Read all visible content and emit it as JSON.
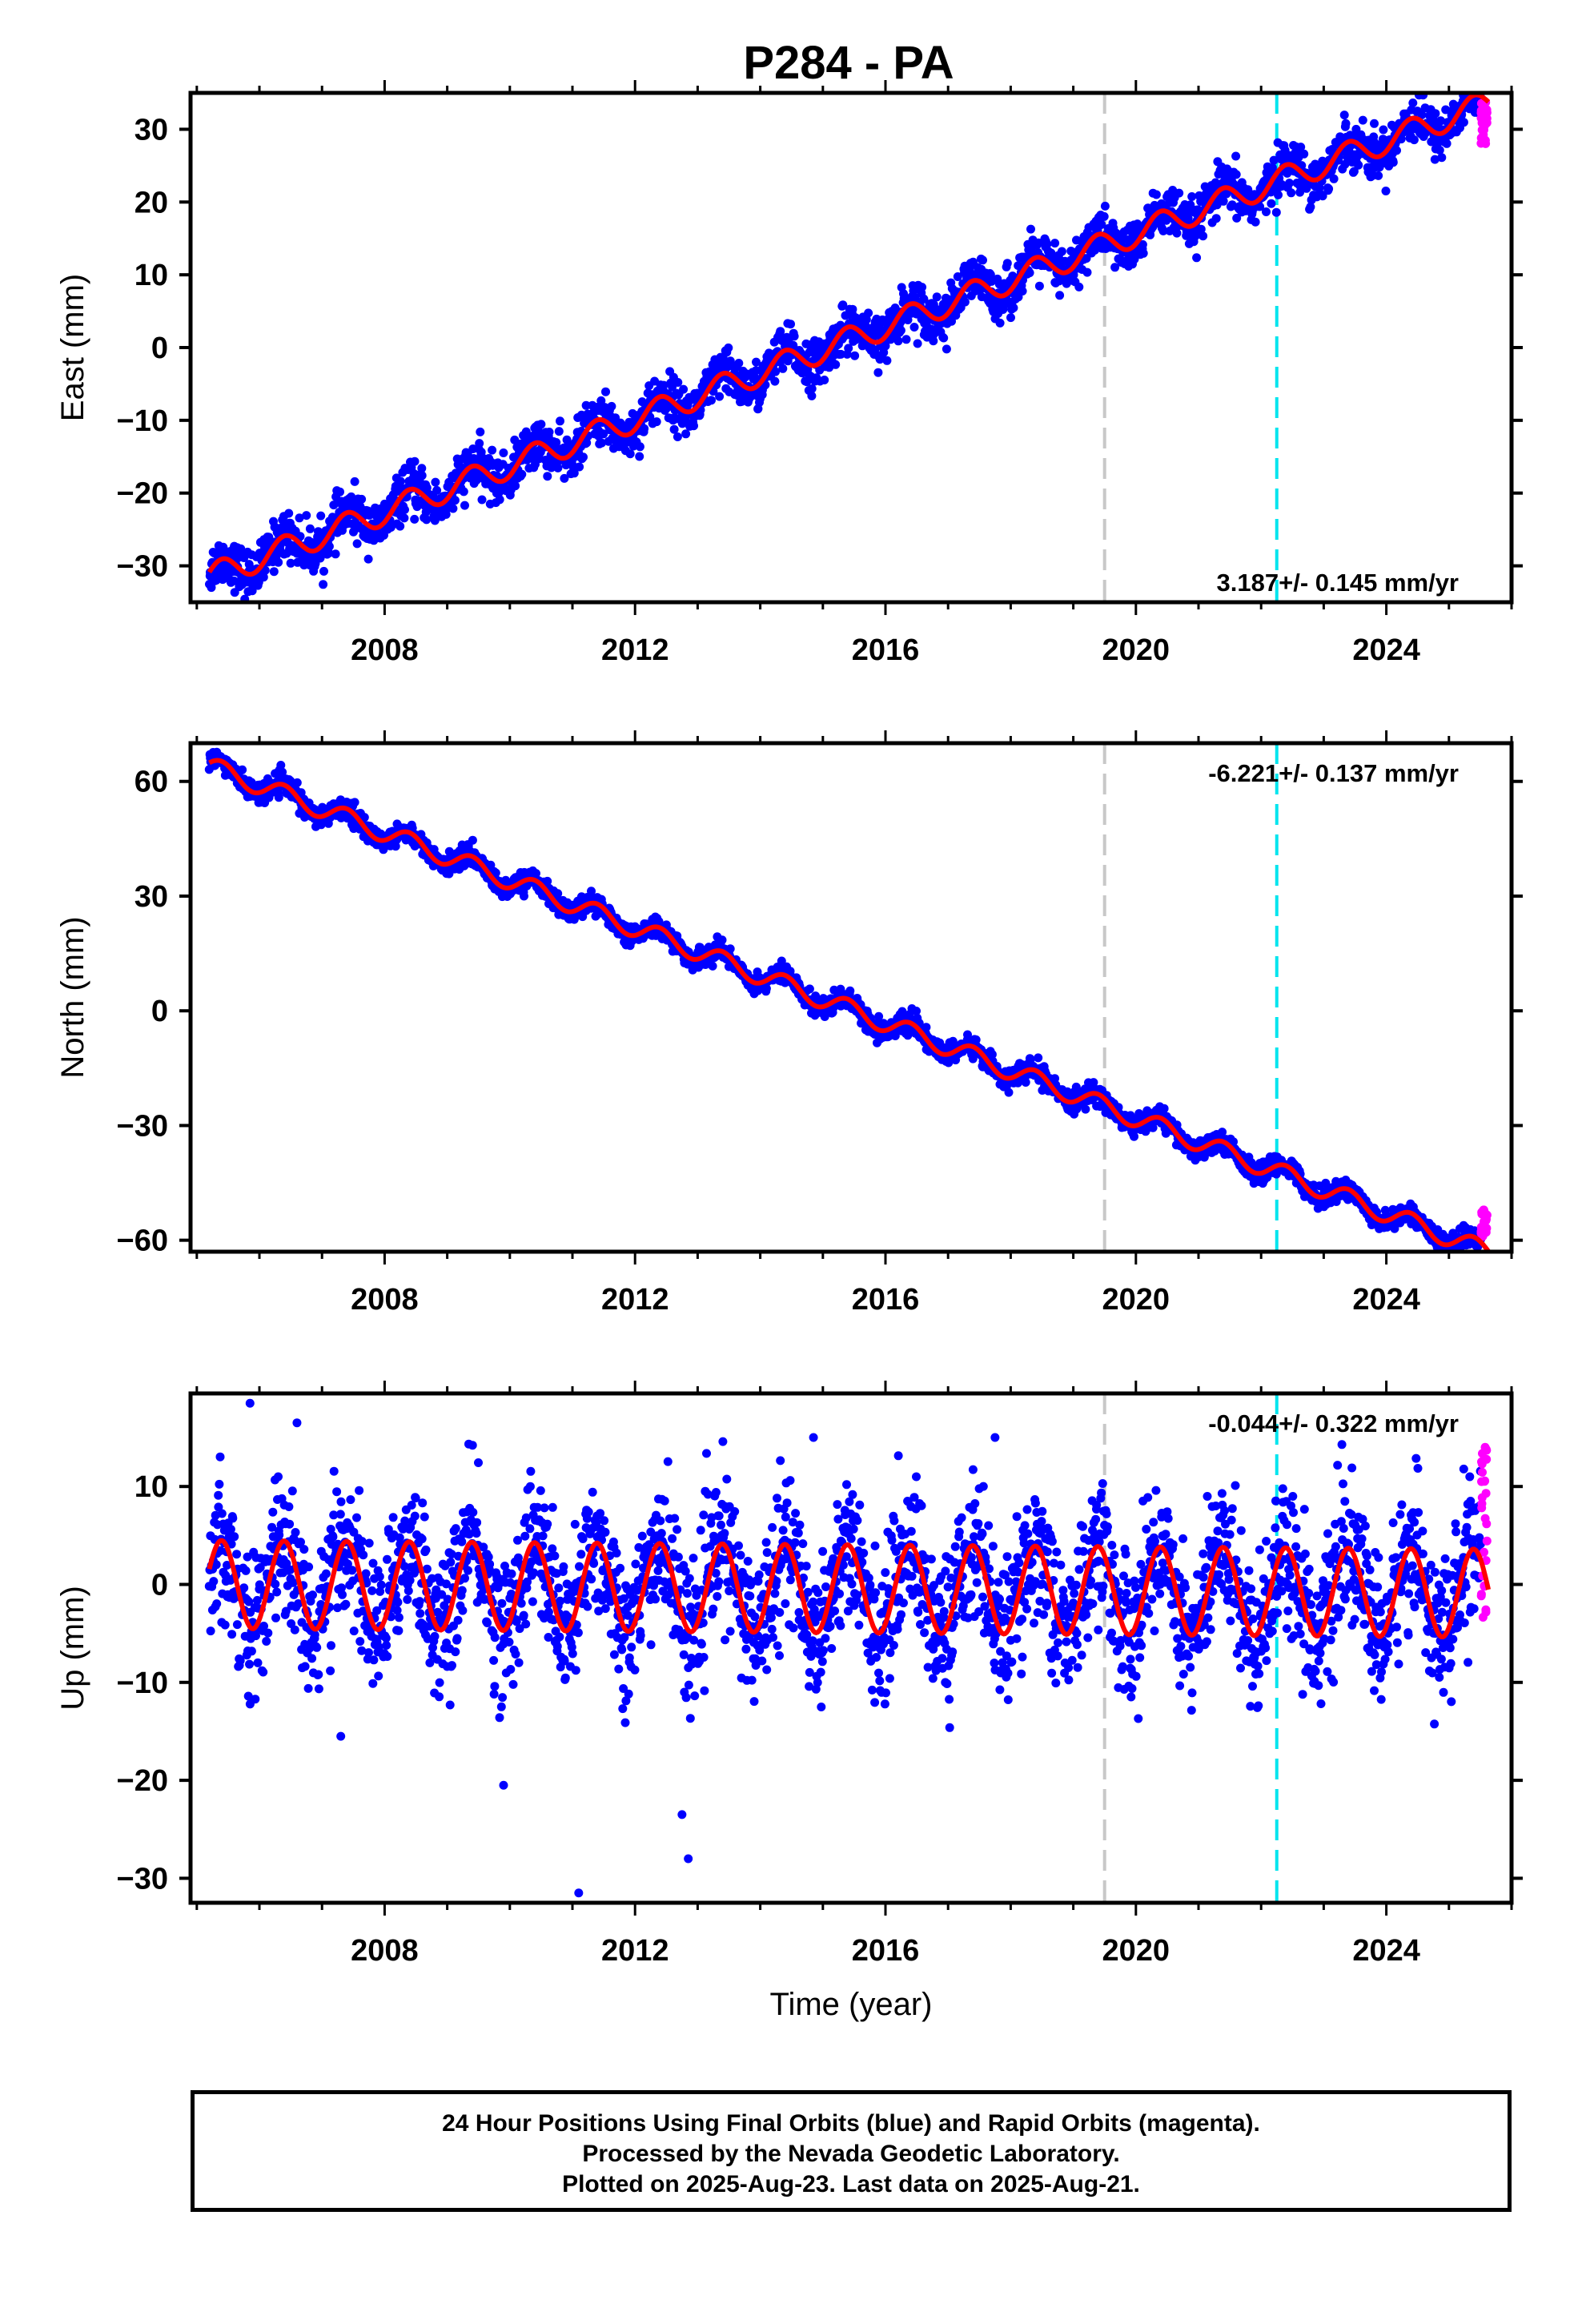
{
  "title": "P284 - PA",
  "footer": {
    "line1": "24 Hour Positions Using Final Orbits (blue) and Rapid Orbits (magenta).",
    "line2": "Processed by the Nevada Geodetic Laboratory.",
    "line3": "Plotted on 2025-Aug-23. Last data on 2025-Aug-21."
  },
  "colors": {
    "final_orbits": "#0000ff",
    "rapid_orbits": "#ff00ff",
    "model": "#ff0000",
    "event_gray": "#c8c8c8",
    "event_cyan": "#00e5ee"
  },
  "chart_data": [
    {
      "type": "scatter",
      "component": "East",
      "ylabel": "East (mm)",
      "xlabel": "",
      "rate_label": "3.187+/- 0.145 mm/yr",
      "rate_position": "bottom-right",
      "xlim": [
        2004.9,
        2026.0
      ],
      "ylim": [
        -35,
        35
      ],
      "x_ticks": [
        2008,
        2012,
        2016,
        2020,
        2024
      ],
      "x_tick_labels": [
        "2008",
        "2012",
        "2016",
        "2020",
        "2024"
      ],
      "y_ticks": [
        -30,
        -20,
        -10,
        0,
        10,
        20,
        30
      ],
      "y_tick_labels": [
        "−30",
        "−20",
        "−10",
        "0",
        "10",
        "20",
        "30"
      ],
      "start": 2005.2,
      "end": 2025.63,
      "offset_at_start": -31.5,
      "rate_mm_yr": 3.187,
      "seasonal_amplitude": 1.8,
      "scatter_spread": 1.6,
      "rapid_range": [
        28,
        34
      ],
      "event_lines": [
        {
          "x": 2019.5,
          "color": "gray"
        },
        {
          "x": 2022.25,
          "color": "cyan"
        }
      ]
    },
    {
      "type": "scatter",
      "component": "North",
      "ylabel": "North (mm)",
      "xlabel": "",
      "rate_label": "-6.221+/- 0.137 mm/yr",
      "rate_position": "top-right",
      "xlim": [
        2004.9,
        2026.0
      ],
      "ylim": [
        -63,
        70
      ],
      "x_ticks": [
        2008,
        2012,
        2016,
        2020,
        2024
      ],
      "x_tick_labels": [
        "2008",
        "2012",
        "2016",
        "2020",
        "2024"
      ],
      "y_ticks": [
        -60,
        -30,
        0,
        30,
        60
      ],
      "y_tick_labels": [
        "−60",
        "−30",
        "0",
        "30",
        "60"
      ],
      "start": 2005.2,
      "end": 2025.63,
      "offset_at_start": 64,
      "rate_mm_yr": -6.221,
      "seasonal_amplitude": 2.5,
      "scatter_spread": 1.3,
      "rapid_range": [
        -59,
        -52
      ],
      "event_lines": [
        {
          "x": 2019.5,
          "color": "gray"
        },
        {
          "x": 2022.25,
          "color": "cyan"
        }
      ]
    },
    {
      "type": "scatter",
      "component": "Up",
      "ylabel": "Up (mm)",
      "xlabel": "Time (year)",
      "rate_label": "-0.044+/- 0.322 mm/yr",
      "rate_position": "top-right",
      "xlim": [
        2004.9,
        2026.0
      ],
      "ylim": [
        -32.5,
        19.5
      ],
      "x_ticks": [
        2008,
        2012,
        2016,
        2020,
        2024
      ],
      "x_tick_labels": [
        "2008",
        "2012",
        "2016",
        "2020",
        "2024"
      ],
      "y_ticks": [
        -30,
        -20,
        -10,
        0,
        10
      ],
      "y_tick_labels": [
        "−30",
        "−20",
        "−10",
        "0",
        "10"
      ],
      "start": 2005.2,
      "end": 2025.63,
      "offset_at_start": 0,
      "rate_mm_yr": -0.044,
      "seasonal_amplitude": 4.5,
      "scatter_spread": 3.6,
      "rapid_range": [
        -4,
        14
      ],
      "event_lines": [
        {
          "x": 2019.5,
          "color": "gray"
        },
        {
          "x": 2022.25,
          "color": "cyan"
        }
      ],
      "outliers": [
        {
          "x": 2011.1,
          "y": -31.5
        },
        {
          "x": 2012.85,
          "y": -28
        },
        {
          "x": 2012.75,
          "y": -23.5
        },
        {
          "x": 2009.9,
          "y": -20.5
        },
        {
          "x": 2007.3,
          "y": -15.5
        },
        {
          "x": 2005.85,
          "y": 18.5
        },
        {
          "x": 2006.6,
          "y": 16.5
        },
        {
          "x": 2017.75,
          "y": 15
        },
        {
          "x": 2014.85,
          "y": 15
        }
      ]
    }
  ]
}
